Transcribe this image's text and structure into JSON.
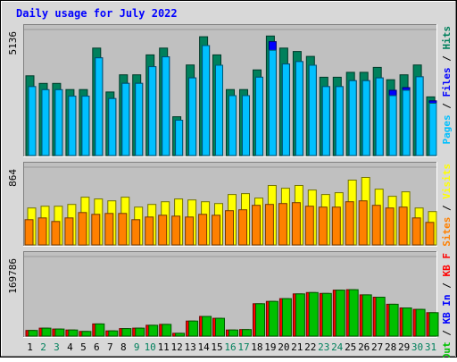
{
  "chart_data": {
    "type": "bar",
    "title": "Daily usage for July 2022",
    "categories": [
      "1",
      "2",
      "3",
      "4",
      "5",
      "6",
      "7",
      "8",
      "9",
      "10",
      "11",
      "12",
      "13",
      "14",
      "15",
      "16",
      "17",
      "18",
      "19",
      "20",
      "21",
      "22",
      "23",
      "24",
      "25",
      "26",
      "27",
      "28",
      "29",
      "30",
      "31"
    ],
    "weekend_days": [
      2,
      3,
      9,
      10,
      16,
      17,
      23,
      24,
      30,
      31
    ],
    "colors": {
      "title": "#0000ff",
      "hits": "#00805c",
      "files": "#0000ff",
      "pages": "#00c0ff",
      "visits": "#ffff00",
      "sites": "#ff8000",
      "kb_in": "#ff0000",
      "kb_out": "#00c000",
      "weekday_label": "#000000",
      "weekend_label": "#00805c",
      "plot_bg": "#c0c0c0",
      "frame_bg": "#d8d8d8"
    },
    "panels": [
      {
        "id": "hits-files-pages",
        "max_label": "5136",
        "ymax": 5136,
        "legend": [
          {
            "text": "Hits",
            "color": "#00805c"
          },
          {
            "text": "Files",
            "color": "#0000ff"
          },
          {
            "text": "Pages",
            "color": "#00c0ff"
          }
        ],
        "series": [
          {
            "name": "Hits",
            "color": "#00805c",
            "values": [
              3250,
              2940,
              2940,
              2690,
              2690,
              4380,
              2590,
              3290,
              3290,
              4100,
              4380,
              1580,
              3690,
              4840,
              4100,
              2690,
              2690,
              3490,
              4870,
              4380,
              4240,
              4040,
              3190,
              3190,
              3390,
              3390,
              3590,
              3090,
              3290,
              3690,
              2390
            ]
          },
          {
            "name": "Files",
            "color": "#0000ff",
            "values": [
              2810,
              2680,
              2680,
              2420,
              2420,
              3980,
              2320,
              2940,
              2940,
              3620,
              4020,
              1440,
              3160,
              4480,
              3680,
              2440,
              2440,
              3190,
              4640,
              3730,
              3830,
              3680,
              2810,
              2810,
              3050,
              3050,
              3160,
              2660,
              2770,
              3210,
              2230
            ]
          },
          {
            "name": "Pages",
            "color": "#00c0ff",
            "values": [
              2810,
              2680,
              2680,
              2420,
              2420,
              3980,
              2320,
              2940,
              2940,
              3620,
              4020,
              1440,
              3160,
              4480,
              3680,
              2440,
              2440,
              3190,
              4290,
              3730,
              3830,
              3680,
              2810,
              2810,
              3050,
              3050,
              3160,
              2440,
              2660,
              3210,
              2130
            ]
          }
        ]
      },
      {
        "id": "visits-sites",
        "max_label": "864",
        "ymax": 864,
        "legend": [
          {
            "text": "Visits",
            "color": "#ffff00"
          },
          {
            "text": "Sites",
            "color": "#ff8000"
          }
        ],
        "series": [
          {
            "name": "Visits",
            "color": "#ffff00",
            "values": [
              410,
              430,
              430,
              450,
              530,
              510,
              490,
              530,
              420,
              450,
              480,
              510,
              500,
              480,
              460,
              560,
              570,
              520,
              660,
              630,
              660,
              610,
              560,
              580,
              720,
              750,
              620,
              540,
              590,
              410,
              370
            ]
          },
          {
            "name": "Sites",
            "color": "#ff8000",
            "values": [
              280,
              300,
              260,
              300,
              360,
              340,
              350,
              350,
              280,
              310,
              330,
              320,
              310,
              340,
              330,
              380,
              390,
              440,
              450,
              460,
              470,
              430,
              420,
              420,
              480,
              490,
              440,
              410,
              420,
              300,
              250
            ]
          }
        ]
      },
      {
        "id": "kb",
        "max_label": "169786",
        "ymax": 169786,
        "legend": [
          {
            "text": "KB F",
            "color": "#ff0000"
          },
          {
            "text": "KB In",
            "color": "#0000ff"
          },
          {
            "text": "KB Out",
            "color": "#00c000"
          }
        ],
        "series": [
          {
            "name": "KB F",
            "color": "#ff0000",
            "values": [
              12000,
              17000,
              15000,
              13000,
              10000,
              26000,
              11000,
              16000,
              17000,
              23000,
              25000,
              6000,
              32000,
              42000,
              38000,
              13000,
              14000,
              69000,
              74000,
              80000,
              90000,
              93000,
              91000,
              98000,
              99000,
              88000,
              83000,
              68000,
              60000,
              57000,
              50000
            ]
          },
          {
            "name": "KB In",
            "color": "#0000ff",
            "values": [
              0,
              0,
              0,
              0,
              0,
              0,
              0,
              0,
              0,
              0,
              0,
              0,
              0,
              0,
              0,
              0,
              0,
              0,
              0,
              0,
              0,
              0,
              0,
              0,
              0,
              0,
              0,
              0,
              0,
              0,
              0
            ]
          },
          {
            "name": "KB Out",
            "color": "#00c000",
            "values": [
              12000,
              17000,
              15000,
              13000,
              10000,
              26000,
              11000,
              16000,
              17000,
              23000,
              25000,
              6000,
              32000,
              42000,
              38000,
              13000,
              14000,
              69000,
              74000,
              80000,
              90000,
              93000,
              91000,
              98000,
              99000,
              88000,
              83000,
              68000,
              60000,
              57000,
              50000
            ]
          }
        ]
      }
    ]
  }
}
